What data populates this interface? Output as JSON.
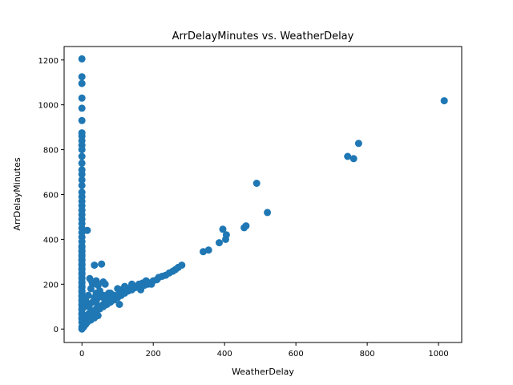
{
  "chart_data": {
    "type": "scatter",
    "title": "ArrDelayMinutes vs. WeatherDelay",
    "xlabel": "WeatherDelay",
    "ylabel": "ArrDelayMinutes",
    "xlim": [
      -50,
      1065
    ],
    "ylim": [
      -60,
      1260
    ],
    "xticks": [
      0,
      200,
      400,
      600,
      800,
      1000
    ],
    "yticks": [
      0,
      200,
      400,
      600,
      800,
      1000,
      1200
    ],
    "grid": false,
    "color": "#1f77b4",
    "series": [
      {
        "x": [
          0,
          0,
          0,
          0,
          0,
          0,
          0,
          0,
          0,
          0,
          0,
          0,
          0,
          0,
          0,
          0,
          0,
          0,
          0,
          0,
          0,
          0,
          0,
          0,
          0,
          0,
          0,
          0,
          0,
          0,
          0,
          0,
          0,
          0,
          0,
          0,
          0,
          0,
          0,
          0,
          0,
          0,
          0,
          0,
          0,
          0,
          0,
          0,
          0,
          0,
          0,
          0,
          0,
          0,
          0,
          0,
          0,
          0,
          0,
          0,
          0,
          0,
          0,
          0,
          0,
          0,
          15,
          22,
          28,
          35,
          40,
          45,
          60,
          55,
          25,
          30,
          50,
          65,
          70,
          40,
          35,
          18,
          12,
          10,
          8,
          20,
          30,
          45,
          60,
          75,
          90,
          110,
          80,
          95,
          100,
          105,
          130,
          140,
          150,
          160,
          165,
          175,
          185,
          190,
          195,
          200,
          210,
          215,
          225,
          235,
          245,
          255,
          262,
          270,
          280,
          5,
          10,
          15,
          20,
          25,
          30,
          40,
          50,
          60,
          70,
          80,
          90,
          100,
          110,
          120,
          130,
          140,
          150,
          160,
          170,
          180,
          20,
          40,
          60,
          80,
          100,
          120,
          140,
          10,
          20,
          30,
          40,
          50,
          60,
          70,
          5,
          10,
          15,
          25,
          35,
          45,
          340,
          355,
          385,
          395,
          403,
          405,
          455,
          460,
          490,
          520,
          745,
          762,
          776,
          1016
        ],
        "y": [
          1205,
          1125,
          1095,
          1030,
          985,
          930,
          875,
          860,
          840,
          820,
          800,
          770,
          740,
          710,
          690,
          665,
          640,
          610,
          590,
          570,
          550,
          530,
          510,
          490,
          470,
          450,
          430,
          410,
          390,
          370,
          350,
          330,
          310,
          290,
          270,
          250,
          230,
          210,
          190,
          170,
          150,
          130,
          110,
          90,
          70,
          50,
          30,
          10,
          0,
          365,
          345,
          325,
          305,
          285,
          265,
          245,
          225,
          205,
          185,
          165,
          145,
          125,
          105,
          85,
          65,
          45,
          440,
          225,
          210,
          285,
          215,
          195,
          210,
          290,
          180,
          200,
          170,
          200,
          150,
          160,
          140,
          150,
          120,
          130,
          100,
          110,
          120,
          140,
          150,
          160,
          150,
          175,
          130,
          140,
          150,
          110,
          180,
          175,
          185,
          190,
          175,
          195,
          200,
          205,
          200,
          215,
          220,
          230,
          235,
          240,
          250,
          258,
          265,
          275,
          285,
          20,
          30,
          40,
          50,
          60,
          70,
          80,
          90,
          100,
          110,
          120,
          130,
          140,
          150,
          160,
          170,
          180,
          190,
          200,
          205,
          215,
          100,
          120,
          140,
          160,
          180,
          190,
          200,
          60,
          70,
          80,
          90,
          100,
          110,
          120,
          10,
          20,
          30,
          40,
          50,
          60,
          345,
          352,
          385,
          445,
          400,
          420,
          452,
          460,
          650,
          520,
          770,
          760,
          828,
          1018
        ]
      }
    ]
  }
}
